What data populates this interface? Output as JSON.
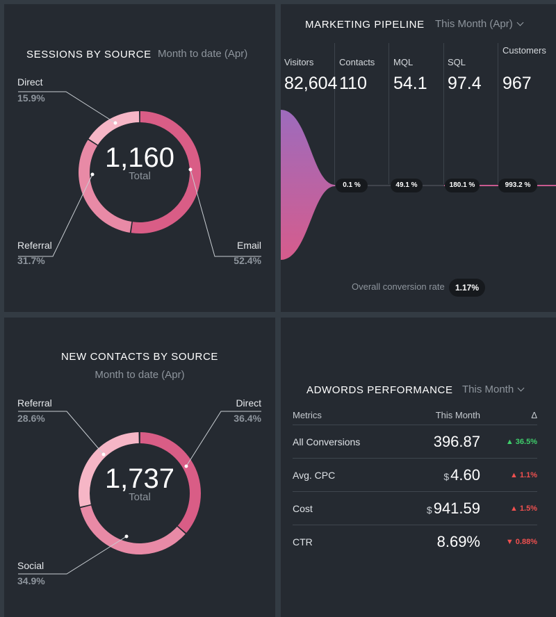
{
  "sessions": {
    "title": "SESSIONS BY SOURCE",
    "period": "Month to date (Apr)",
    "total_value": "1,160",
    "total_label": "Total",
    "slices": [
      {
        "name": "Email",
        "pct": "52.4%",
        "share": 0.524,
        "color": "#d95d86"
      },
      {
        "name": "Referral",
        "pct": "31.7%",
        "share": 0.317,
        "color": "#e88aa6"
      },
      {
        "name": "Direct",
        "pct": "15.9%",
        "share": 0.159,
        "color": "#f6b6c6"
      }
    ]
  },
  "pipeline": {
    "title": "MARKETING PIPELINE",
    "period": "This Month (Apr)",
    "stages": [
      {
        "label": "Visitors",
        "value": "82,604"
      },
      {
        "label": "Contacts",
        "value": "110"
      },
      {
        "label": "MQL",
        "value": "54.1"
      },
      {
        "label": "SQL",
        "value": "97.4"
      },
      {
        "label": "Customers",
        "value": "967"
      }
    ],
    "conversions": [
      "0.1 %",
      "49.1 %",
      "180.1 %",
      "993.2 %"
    ],
    "overall_label": "Overall conversion rate",
    "overall_value": "1.17%",
    "gradient": {
      "top": "#9d6bbd",
      "bottom": "#d65c8c"
    }
  },
  "contacts": {
    "title": "NEW CONTACTS BY SOURCE",
    "period": "Month to date (Apr)",
    "total_value": "1,737",
    "total_label": "Total",
    "slices": [
      {
        "name": "Direct",
        "pct": "36.4%",
        "share": 0.364,
        "color": "#d95d86"
      },
      {
        "name": "Social",
        "pct": "34.9%",
        "share": 0.349,
        "color": "#e88aa6"
      },
      {
        "name": "Referral",
        "pct": "28.6%",
        "share": 0.286,
        "color": "#f6b6c6"
      }
    ]
  },
  "adwords": {
    "title": "ADWORDS PERFORMANCE",
    "period": "This Month",
    "columns": {
      "metric": "Metrics",
      "value": "This Month",
      "delta": "Δ"
    },
    "rows": [
      {
        "metric": "All Conversions",
        "currency": "",
        "value": "396.87",
        "arrow": "▲",
        "delta": "36.5%",
        "color": "#3fcf6b"
      },
      {
        "metric": "Avg. CPC",
        "currency": "$",
        "value": "4.60",
        "arrow": "▲",
        "delta": "1.1%",
        "color": "#f0504f"
      },
      {
        "metric": "Cost",
        "currency": "$",
        "value": "941.59",
        "arrow": "▲",
        "delta": "1.5%",
        "color": "#f0504f"
      },
      {
        "metric": "CTR",
        "currency": "",
        "value": "8.69%",
        "arrow": "▼",
        "delta": "0.88%",
        "color": "#f0504f"
      }
    ]
  }
}
